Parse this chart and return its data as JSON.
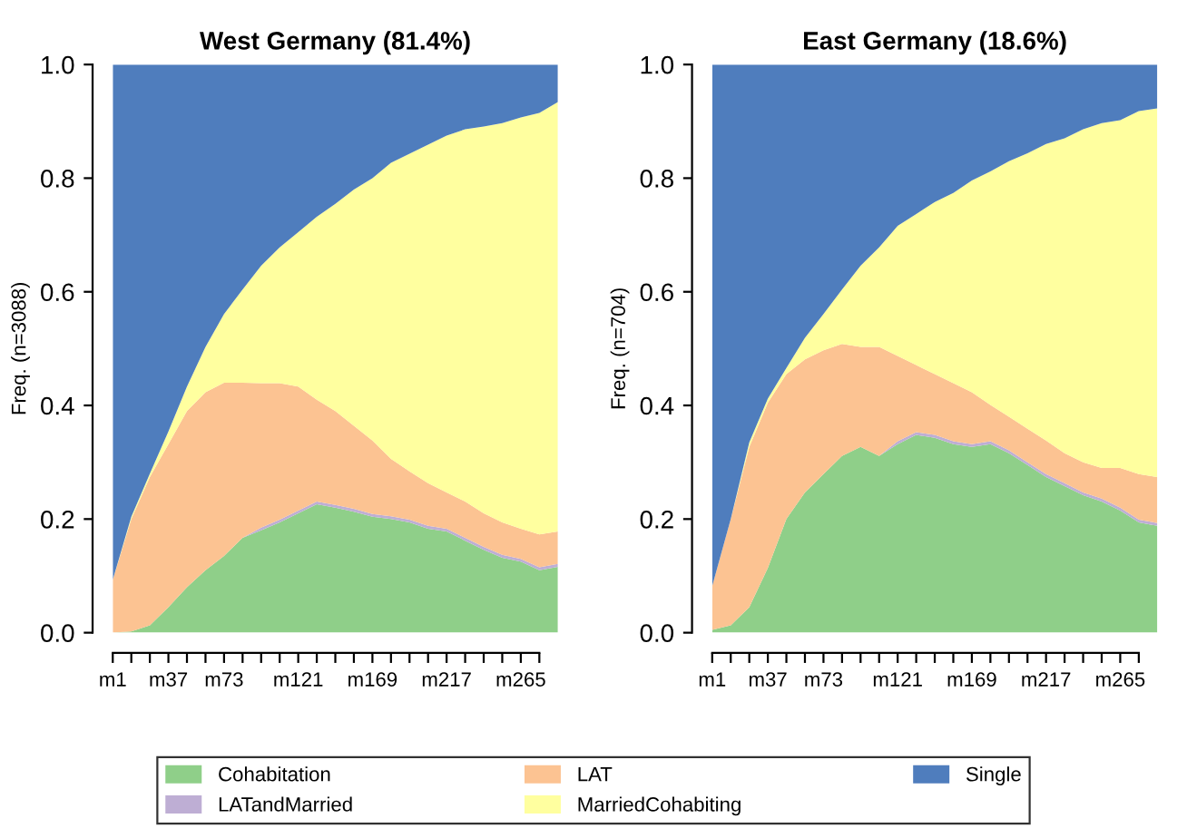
{
  "chart_data": [
    {
      "type": "area",
      "stacked": true,
      "title": "West Germany (81.4%)",
      "ylabel": "Freq. (n=3088)",
      "categories": [
        "m1",
        null,
        null,
        "m37",
        null,
        null,
        "m73",
        null,
        null,
        null,
        "m121",
        null,
        null,
        null,
        "m169",
        null,
        null,
        null,
        "m217",
        null,
        null,
        null,
        "m265",
        null,
        null
      ],
      "ylim": [
        0,
        1
      ],
      "yticks": [
        {
          "value": 0,
          "label": "0.0"
        },
        {
          "value": 0.2,
          "label": "0.2"
        },
        {
          "value": 0.4,
          "label": "0.4"
        },
        {
          "value": 0.6,
          "label": "0.6"
        },
        {
          "value": 0.8,
          "label": "0.8"
        },
        {
          "value": 1,
          "label": "1.0"
        }
      ],
      "grid": false,
      "legend": "bottom",
      "series": [
        {
          "name": "Cohabitation",
          "color": "#8fcf89",
          "values": [
            0,
            0.002,
            0.013,
            0.045,
            0.08,
            0.11,
            0.135,
            0.167,
            0.18,
            0.194,
            0.21,
            0.226,
            0.22,
            0.213,
            0.204,
            0.2,
            0.194,
            0.183,
            0.178,
            0.162,
            0.146,
            0.132,
            0.125,
            0.11,
            0.116
          ]
        },
        {
          "name": "LATandMarried",
          "color": "#beaed4",
          "values": [
            0,
            0,
            0,
            0,
            0,
            0,
            0,
            0,
            0.005,
            0.005,
            0.005,
            0.005,
            0.005,
            0.005,
            0.005,
            0.005,
            0.005,
            0.005,
            0.005,
            0.005,
            0.005,
            0.005,
            0.005,
            0.005,
            0.005
          ]
        },
        {
          "name": "LAT",
          "color": "#fcc392",
          "values": [
            0.093,
            0.198,
            0.261,
            0.287,
            0.31,
            0.313,
            0.305,
            0.273,
            0.254,
            0.24,
            0.218,
            0.179,
            0.165,
            0.146,
            0.129,
            0.101,
            0.085,
            0.075,
            0.064,
            0.064,
            0.059,
            0.057,
            0.053,
            0.058,
            0.057
          ]
        },
        {
          "name": "MarriedCohabiting",
          "color": "#ffff9f",
          "values": [
            0,
            0.004,
            0.006,
            0.022,
            0.043,
            0.08,
            0.121,
            0.164,
            0.207,
            0.239,
            0.272,
            0.322,
            0.365,
            0.416,
            0.462,
            0.521,
            0.559,
            0.596,
            0.628,
            0.655,
            0.681,
            0.703,
            0.724,
            0.742,
            0.756
          ]
        },
        {
          "name": "Single",
          "color": "#4f7dbd",
          "values": [
            0.907,
            0.796,
            0.72,
            0.646,
            0.567,
            0.497,
            0.439,
            0.396,
            0.354,
            0.322,
            0.295,
            0.268,
            0.245,
            0.22,
            0.2,
            0.173,
            0.157,
            0.141,
            0.125,
            0.114,
            0.109,
            0.103,
            0.093,
            0.085,
            0.066
          ]
        }
      ]
    },
    {
      "type": "area",
      "stacked": true,
      "title": "East Germany (18.6%)",
      "ylabel": "Freq. (n=704)",
      "categories": [
        "m1",
        null,
        null,
        "m37",
        null,
        null,
        "m73",
        null,
        null,
        null,
        "m121",
        null,
        null,
        null,
        "m169",
        null,
        null,
        null,
        "m217",
        null,
        null,
        null,
        "m265",
        null,
        null
      ],
      "ylim": [
        0,
        1
      ],
      "yticks": [
        {
          "value": 0,
          "label": "0.0"
        },
        {
          "value": 0.2,
          "label": "0.2"
        },
        {
          "value": 0.4,
          "label": "0.4"
        },
        {
          "value": 0.6,
          "label": "0.6"
        },
        {
          "value": 0.8,
          "label": "0.8"
        },
        {
          "value": 1,
          "label": "1.0"
        }
      ],
      "grid": false,
      "series": [
        {
          "color": "#8fcf89",
          "values": [
            0.005,
            0.013,
            0.045,
            0.114,
            0.2,
            0.247,
            0.279,
            0.311,
            0.327,
            0.311,
            0.332,
            0.348,
            0.343,
            0.332,
            0.327,
            0.332,
            0.316,
            0.295,
            0.274,
            0.258,
            0.242,
            0.231,
            0.215,
            0.194,
            0.188
          ]
        },
        {
          "color": "#beaed4",
          "values": [
            0,
            0,
            0,
            0,
            0,
            0,
            0,
            0,
            0,
            0,
            0.005,
            0.005,
            0.005,
            0.005,
            0.005,
            0.005,
            0.005,
            0.005,
            0.005,
            0.005,
            0.005,
            0.005,
            0.005,
            0.005,
            0.005
          ]
        },
        {
          "color": "#fcc392",
          "values": [
            0.077,
            0.187,
            0.282,
            0.291,
            0.255,
            0.234,
            0.218,
            0.197,
            0.176,
            0.192,
            0.15,
            0.118,
            0.107,
            0.102,
            0.091,
            0.064,
            0.059,
            0.059,
            0.059,
            0.053,
            0.053,
            0.054,
            0.07,
            0.08,
            0.081
          ]
        },
        {
          "color": "#ffff9f",
          "values": [
            0,
            0,
            0.008,
            0.007,
            0.011,
            0.038,
            0.064,
            0.096,
            0.143,
            0.175,
            0.229,
            0.266,
            0.303,
            0.335,
            0.373,
            0.411,
            0.45,
            0.485,
            0.522,
            0.554,
            0.586,
            0.607,
            0.612,
            0.639,
            0.649
          ]
        },
        {
          "color": "#4f7dbd",
          "values": [
            0.918,
            0.8,
            0.665,
            0.588,
            0.534,
            0.481,
            0.439,
            0.396,
            0.354,
            0.322,
            0.284,
            0.263,
            0.242,
            0.226,
            0.204,
            0.188,
            0.17,
            0.156,
            0.14,
            0.13,
            0.114,
            0.103,
            0.098,
            0.082,
            0.077
          ]
        }
      ]
    }
  ]
}
